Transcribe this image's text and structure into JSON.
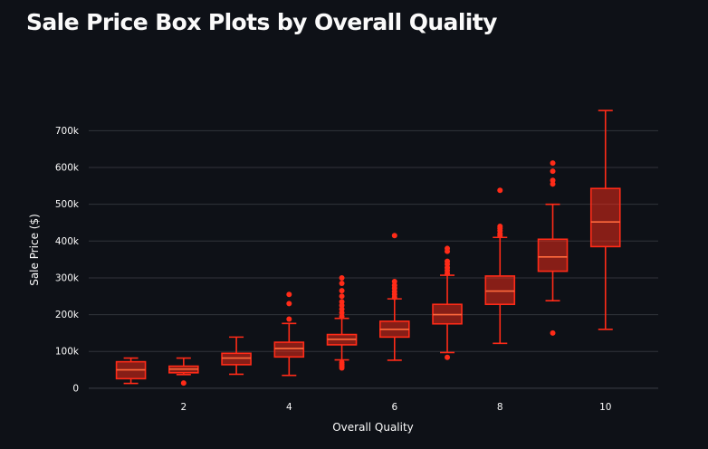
{
  "title": "Sale Price Box Plots by Overall Quality",
  "chart_data": {
    "type": "box",
    "xlabel": "Overall Quality",
    "ylabel": "Sale Price ($)",
    "x_ticks": [
      2,
      4,
      6,
      8,
      10
    ],
    "x_range": [
      0.2,
      11.0
    ],
    "y_ticks": [
      {
        "value": 0,
        "label": "0"
      },
      {
        "value": 100000,
        "label": "100k"
      },
      {
        "value": 200000,
        "label": "200k"
      },
      {
        "value": 300000,
        "label": "300k"
      },
      {
        "value": 400000,
        "label": "400k"
      },
      {
        "value": 500000,
        "label": "500k"
      },
      {
        "value": 600000,
        "label": "600k"
      },
      {
        "value": 700000,
        "label": "700k"
      }
    ],
    "y_range": [
      -20000,
      760000
    ],
    "grid": true,
    "colors": {
      "stroke": "#ff2b18",
      "fill": "#ff2b18",
      "median": "#ff6a3d",
      "grid": "#31343b",
      "background": "#0e1117"
    },
    "boxes": [
      {
        "x": 1,
        "min": 13000,
        "q1": 26000,
        "median": 50000,
        "q3": 72000,
        "max": 82000,
        "outliers": []
      },
      {
        "x": 2,
        "min": 37000,
        "q1": 42000,
        "median": 52000,
        "q3": 60000,
        "max": 82000,
        "outliers": [
          14000
        ]
      },
      {
        "x": 3,
        "min": 38000,
        "q1": 64000,
        "median": 82000,
        "q3": 95000,
        "max": 139000,
        "outliers": []
      },
      {
        "x": 4,
        "min": 35000,
        "q1": 85000,
        "median": 108000,
        "q3": 125000,
        "max": 176000,
        "outliers": [
          188000,
          230000,
          255000
        ]
      },
      {
        "x": 5,
        "min": 77000,
        "q1": 118000,
        "median": 133000,
        "q3": 146000,
        "max": 190000,
        "outliers": [
          55000,
          60000,
          65000,
          70000,
          195000,
          205000,
          215000,
          225000,
          235000,
          250000,
          265000,
          285000,
          300000
        ]
      },
      {
        "x": 6,
        "min": 76000,
        "q1": 139000,
        "median": 160000,
        "q3": 182000,
        "max": 243000,
        "outliers": [
          247000,
          255000,
          263000,
          272000,
          280000,
          290000,
          415000
        ]
      },
      {
        "x": 7,
        "min": 97000,
        "q1": 175000,
        "median": 200000,
        "q3": 228000,
        "max": 307000,
        "outliers": [
          84000,
          312000,
          320000,
          328000,
          337000,
          345000,
          372000,
          380000
        ]
      },
      {
        "x": 8,
        "min": 122000,
        "q1": 228000,
        "median": 264000,
        "q3": 305000,
        "max": 410000,
        "outliers": [
          415000,
          420000,
          428000,
          435000,
          440000,
          538000
        ]
      },
      {
        "x": 9,
        "min": 238000,
        "q1": 318000,
        "median": 357000,
        "q3": 405000,
        "max": 500000,
        "outliers": [
          150000,
          555000,
          565000,
          590000,
          612000
        ]
      },
      {
        "x": 10,
        "min": 160000,
        "q1": 385000,
        "median": 452000,
        "q3": 543000,
        "max": 755000,
        "outliers": []
      }
    ]
  }
}
